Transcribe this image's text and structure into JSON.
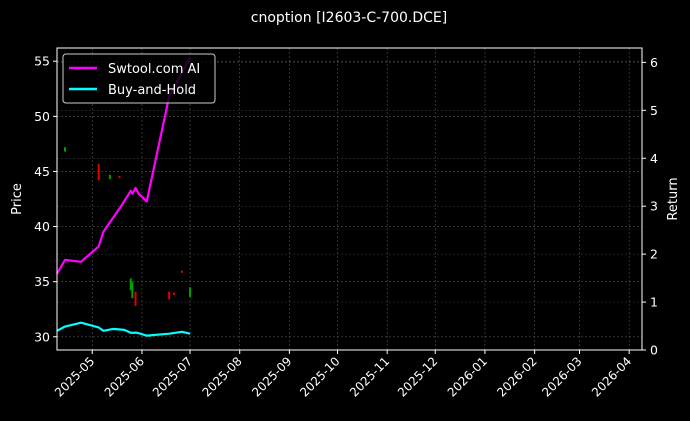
{
  "chart_data": {
    "type": "line",
    "title": "cnoption [I2603-C-700.DCE]",
    "ylabel": "Price",
    "y2label": "Return",
    "ylim": [
      28.8,
      56.2
    ],
    "y2lim": [
      0,
      6.3
    ],
    "xlim": [
      "2025-04-09",
      "2026-04-09"
    ],
    "yticks": [
      30,
      35,
      40,
      45,
      50,
      55
    ],
    "y2ticks": [
      0,
      1,
      2,
      3,
      4,
      5,
      6
    ],
    "xticks": [
      "2025-05",
      "2025-06",
      "2025-07",
      "2025-08",
      "2025-09",
      "2025-10",
      "2025-11",
      "2025-12",
      "2026-01",
      "2026-02",
      "2026-03",
      "2026-04"
    ],
    "grid": true,
    "legend": "top-left",
    "series": [
      {
        "name": "Swtool.com AI",
        "axis": "right",
        "color": "#ff00ff",
        "x": [
          "2025-04-09",
          "2025-04-14",
          "2025-04-24",
          "2025-05-05",
          "2025-05-08",
          "2025-05-19",
          "2025-05-25",
          "2025-05-26",
          "2025-05-28",
          "2025-05-30",
          "2025-06-04",
          "2025-06-18",
          "2025-07-01"
        ],
        "values": [
          1.59,
          1.88,
          1.84,
          2.16,
          2.47,
          3.0,
          3.32,
          3.26,
          3.38,
          3.26,
          3.1,
          5.29,
          6.1
        ]
      },
      {
        "name": "Buy-and-Hold",
        "axis": "right",
        "color": "#00ffff",
        "x": [
          "2025-04-09",
          "2025-04-14",
          "2025-04-24",
          "2025-05-05",
          "2025-05-08",
          "2025-05-14",
          "2025-05-21",
          "2025-05-25",
          "2025-05-29",
          "2025-06-04",
          "2025-06-18",
          "2025-06-26",
          "2025-07-01"
        ],
        "values": [
          0.4,
          0.49,
          0.57,
          0.47,
          0.4,
          0.44,
          0.42,
          0.36,
          0.36,
          0.3,
          0.34,
          0.38,
          0.34
        ]
      }
    ],
    "candles": {
      "axis": "left",
      "up_color": "#00a000",
      "down_color": "#e00000",
      "items": [
        {
          "date": "2025-04-14",
          "low": 46.8,
          "high": 47.2,
          "dir": "up"
        },
        {
          "date": "2025-05-05",
          "low": 44.2,
          "high": 45.7,
          "dir": "down"
        },
        {
          "date": "2025-05-12",
          "low": 44.3,
          "high": 44.7,
          "dir": "up"
        },
        {
          "date": "2025-05-18",
          "low": 44.4,
          "high": 44.6,
          "dir": "down"
        },
        {
          "date": "2025-05-25",
          "low": 34.2,
          "high": 35.3,
          "dir": "up"
        },
        {
          "date": "2025-05-26",
          "low": 33.5,
          "high": 35.0,
          "dir": "up"
        },
        {
          "date": "2025-05-28",
          "low": 32.8,
          "high": 34.1,
          "dir": "down"
        },
        {
          "date": "2025-06-18",
          "low": 33.4,
          "high": 34.1,
          "dir": "down"
        },
        {
          "date": "2025-06-21",
          "low": 33.8,
          "high": 34.0,
          "dir": "down"
        },
        {
          "date": "2025-06-26",
          "low": 35.8,
          "high": 36.0,
          "dir": "down"
        },
        {
          "date": "2025-07-01",
          "low": 33.6,
          "high": 34.5,
          "dir": "up"
        }
      ]
    }
  }
}
